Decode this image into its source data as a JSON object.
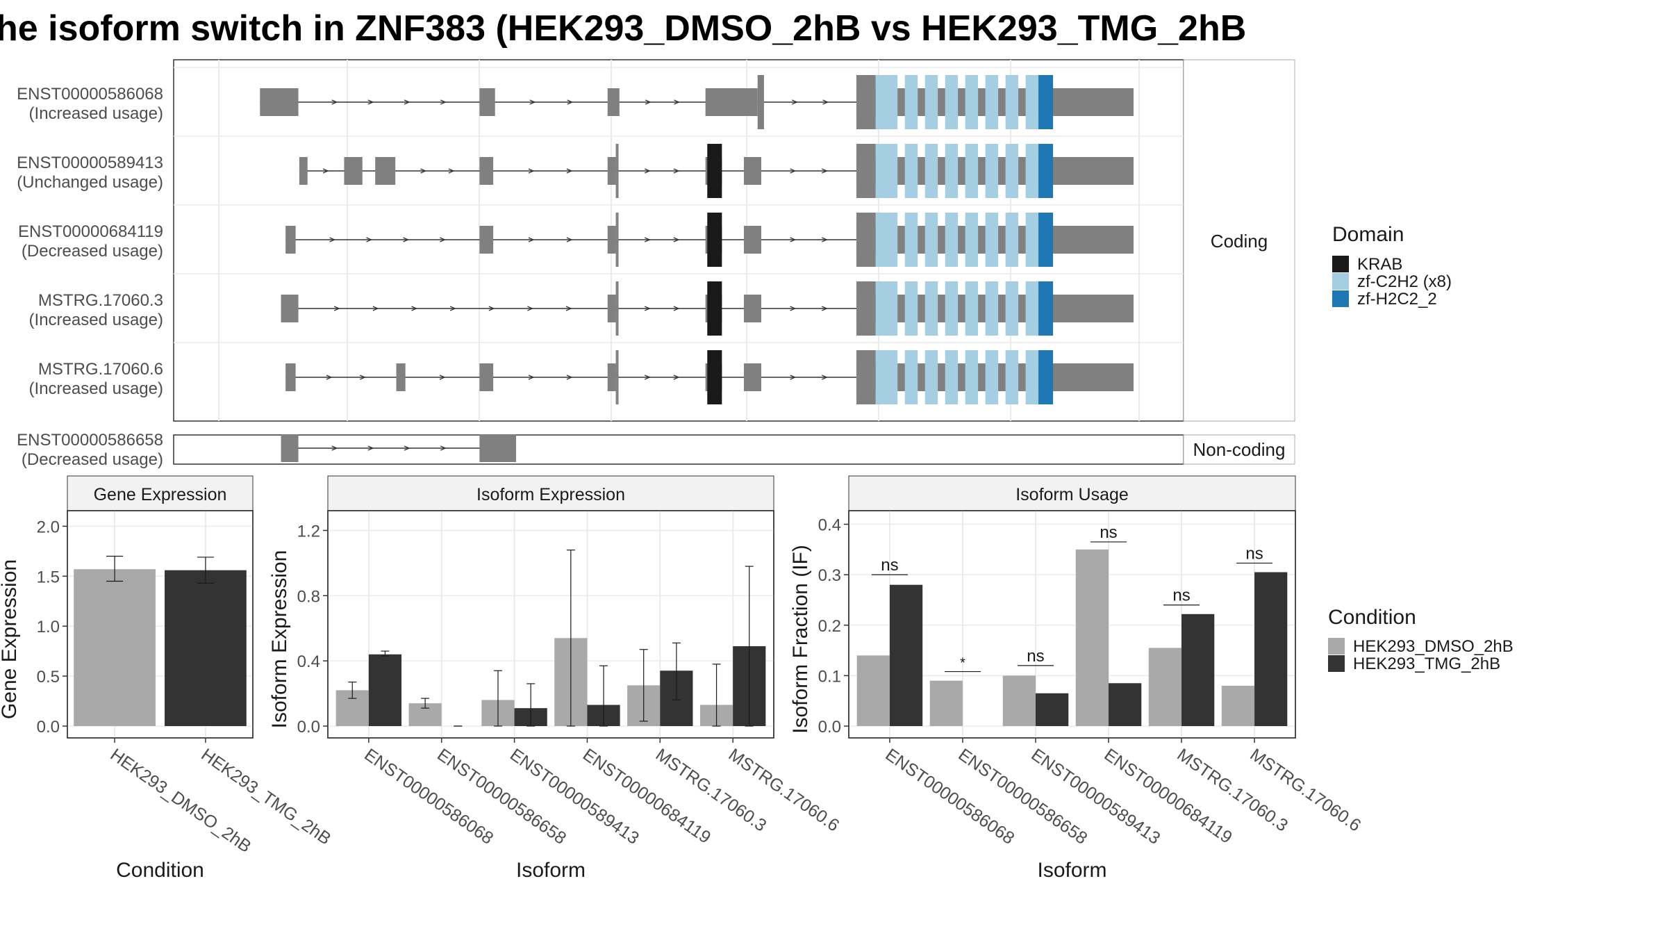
{
  "title": "he isoform switch in ZNF383 (HEK293_DMSO_2hB vs HEK293_TMG_2hB",
  "colors": {
    "exon": "#808080",
    "krab": "#1a1a1a",
    "c2h2": "#a6cee3",
    "h2c2": "#1f78b4",
    "dmso": "#a9a9a9",
    "tmg": "#333333",
    "panel_border": "#333333",
    "strip_bg": "#f2f2f2",
    "grid": "#ebebeb"
  },
  "structure": {
    "facets": {
      "coding": "Coding",
      "noncoding": "Non-coding"
    },
    "isoforms": [
      {
        "id": "ENST00000586068",
        "usage": "(Increased usage)",
        "group": "coding",
        "exons": [
          [
            0.045,
            0.087
          ],
          [
            0.285,
            0.302
          ],
          [
            0.425,
            0.438
          ],
          [
            0.532,
            0.589
          ],
          [
            0.589,
            0.596
          ],
          [
            0.697,
            1.0
          ]
        ],
        "thin": [
          [
            0.589,
            0.596
          ]
        ],
        "domains": []
      },
      {
        "id": "ENST00000589413",
        "usage": "(Unchanged usage)",
        "group": "coding",
        "exons": [
          [
            0.088,
            0.097
          ],
          [
            0.137,
            0.157
          ],
          [
            0.171,
            0.193
          ],
          [
            0.285,
            0.3
          ],
          [
            0.425,
            0.434
          ],
          [
            0.434,
            0.437
          ],
          [
            0.532,
            0.55
          ],
          [
            0.574,
            0.593
          ],
          [
            0.697,
            1.0
          ]
        ],
        "thin": [
          [
            0.434,
            0.437
          ]
        ],
        "domains": [
          [
            0.534,
            0.55,
            "krab"
          ]
        ]
      },
      {
        "id": "ENST00000684119",
        "usage": "(Decreased usage)",
        "group": "coding",
        "exons": [
          [
            0.073,
            0.084
          ],
          [
            0.285,
            0.3
          ],
          [
            0.425,
            0.434
          ],
          [
            0.434,
            0.437
          ],
          [
            0.532,
            0.55
          ],
          [
            0.574,
            0.593
          ],
          [
            0.697,
            1.0
          ]
        ],
        "thin": [
          [
            0.434,
            0.437
          ]
        ],
        "domains": [
          [
            0.534,
            0.55,
            "krab"
          ]
        ]
      },
      {
        "id": "MSTRG.17060.3",
        "usage": "(Increased usage)",
        "group": "coding",
        "exons": [
          [
            0.068,
            0.087
          ],
          [
            0.425,
            0.434
          ],
          [
            0.434,
            0.437
          ],
          [
            0.532,
            0.55
          ],
          [
            0.574,
            0.593
          ],
          [
            0.697,
            1.0
          ]
        ],
        "thin": [
          [
            0.434,
            0.437
          ]
        ],
        "domains": [
          [
            0.534,
            0.55,
            "krab"
          ]
        ]
      },
      {
        "id": "MSTRG.17060.6",
        "usage": "(Increased usage)",
        "group": "coding",
        "exons": [
          [
            0.073,
            0.084
          ],
          [
            0.194,
            0.204
          ],
          [
            0.285,
            0.3
          ],
          [
            0.425,
            0.434
          ],
          [
            0.434,
            0.437
          ],
          [
            0.532,
            0.55
          ],
          [
            0.574,
            0.593
          ],
          [
            0.697,
            1.0
          ]
        ],
        "thin": [
          [
            0.434,
            0.437
          ]
        ],
        "domains": [
          [
            0.534,
            0.55,
            "krab"
          ]
        ]
      },
      {
        "id": "ENST00000586658",
        "usage": "(Decreased usage)",
        "group": "noncoding",
        "exons": [
          [
            0.068,
            0.087
          ],
          [
            0.285,
            0.325
          ]
        ],
        "thin": [],
        "domains": []
      }
    ],
    "zf_segments": [
      [
        0.718,
        0.742,
        "c2h2"
      ],
      [
        0.75,
        0.764,
        "c2h2"
      ],
      [
        0.772,
        0.786,
        "c2h2"
      ],
      [
        0.794,
        0.808,
        "c2h2"
      ],
      [
        0.816,
        0.83,
        "c2h2"
      ],
      [
        0.838,
        0.852,
        "c2h2"
      ],
      [
        0.86,
        0.874,
        "c2h2"
      ],
      [
        0.882,
        0.896,
        "c2h2"
      ],
      [
        0.896,
        0.912,
        "h2c2"
      ]
    ],
    "legend": {
      "title": "Domain",
      "items": [
        {
          "label": "KRAB",
          "color_key": "krab"
        },
        {
          "label": "zf-C2H2 (x8)",
          "color_key": "c2h2"
        },
        {
          "label": "zf-H2C2_2",
          "color_key": "h2c2"
        }
      ]
    }
  },
  "chart_data": [
    {
      "type": "bar",
      "title": "Gene Expression",
      "xlabel": "Condition",
      "ylabel": "Gene Expression",
      "ylim": [
        0,
        2.1
      ],
      "yticks": [
        0.0,
        0.5,
        1.0,
        1.5,
        2.0
      ],
      "ytick_labels": [
        "0.0",
        "0.5",
        "1.0",
        "1.5",
        "2.0"
      ],
      "categories": [
        "HEK293_DMSO_2hB",
        "HEK293_TMG_2hB"
      ],
      "values": [
        1.57,
        1.56
      ],
      "err_low": [
        1.45,
        1.43
      ],
      "err_high": [
        1.7,
        1.69
      ],
      "colors": [
        "#a9a9a9",
        "#333333"
      ]
    },
    {
      "type": "bar",
      "title": "Isoform Expression",
      "xlabel": "Isoform",
      "ylabel": "Isoform Expression",
      "ylim": [
        0,
        1.3
      ],
      "yticks": [
        0.0,
        0.4,
        0.8,
        1.2
      ],
      "ytick_labels": [
        "0.0",
        "0.4",
        "0.8",
        "1.2"
      ],
      "categories": [
        "ENST00000586068",
        "ENST00000586658",
        "ENST00000589413",
        "ENST00000684119",
        "MSTRG.17060.3",
        "MSTRG.17060.6"
      ],
      "series": [
        {
          "name": "HEK293_DMSO_2hB",
          "values": [
            0.22,
            0.14,
            0.16,
            0.54,
            0.25,
            0.13
          ],
          "err_low": [
            0.17,
            0.11,
            0.0,
            0.0,
            0.03,
            0.0
          ],
          "err_high": [
            0.27,
            0.17,
            0.34,
            1.08,
            0.47,
            0.38
          ]
        },
        {
          "name": "HEK293_TMG_2hB",
          "values": [
            0.44,
            0.0,
            0.11,
            0.13,
            0.34,
            0.49
          ],
          "err_low": [
            0.43,
            0.0,
            0.0,
            0.0,
            0.16,
            0.0
          ],
          "err_high": [
            0.46,
            0.0,
            0.26,
            0.37,
            0.51,
            0.98
          ]
        }
      ]
    },
    {
      "type": "bar",
      "title": "Isoform Usage",
      "xlabel": "Isoform",
      "ylabel": "Isoform Fraction (IF)",
      "ylim": [
        0,
        0.42
      ],
      "yticks": [
        0.0,
        0.1,
        0.2,
        0.3,
        0.4
      ],
      "ytick_labels": [
        "0.0",
        "0.1",
        "0.2",
        "0.3",
        "0.4"
      ],
      "categories": [
        "ENST00000586068",
        "ENST00000586658",
        "ENST00000589413",
        "ENST00000684119",
        "MSTRG.17060.3",
        "MSTRG.17060.6"
      ],
      "series": [
        {
          "name": "HEK293_DMSO_2hB",
          "values": [
            0.14,
            0.09,
            0.1,
            0.35,
            0.155,
            0.08
          ]
        },
        {
          "name": "HEK293_TMG_2hB",
          "values": [
            0.28,
            0.0,
            0.065,
            0.085,
            0.222,
            0.305
          ]
        }
      ],
      "significance": [
        {
          "label": "ns",
          "y": 0.3
        },
        {
          "label": "*",
          "y": 0.108
        },
        {
          "label": "ns",
          "y": 0.12
        },
        {
          "label": "ns",
          "y": 0.365
        },
        {
          "label": "ns",
          "y": 0.24
        },
        {
          "label": "ns",
          "y": 0.323
        }
      ]
    }
  ],
  "condition_legend": {
    "title": "Condition",
    "items": [
      {
        "label": "HEK293_DMSO_2hB",
        "color_key": "dmso"
      },
      {
        "label": "HEK293_TMG_2hB",
        "color_key": "tmg"
      }
    ]
  }
}
